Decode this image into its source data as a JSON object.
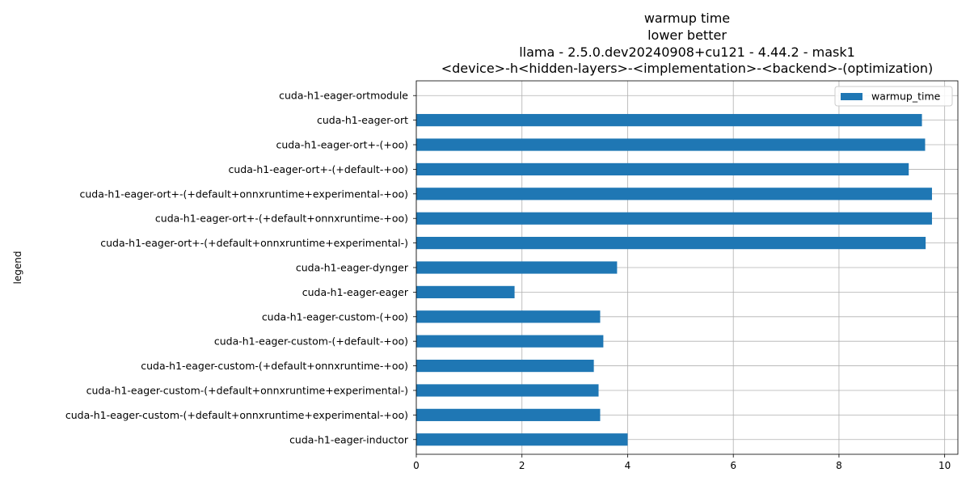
{
  "chart_data": {
    "type": "bar",
    "orientation": "horizontal",
    "title_lines": [
      "warmup time",
      "lower better",
      "llama - 2.5.0.dev20240908+cu121 - 4.44.2 - mask1",
      "<device>-h<hidden-layers>-<implementation>-<backend>-(optimization)"
    ],
    "xlabel": "",
    "ylabel": "legend",
    "xlim": [
      0,
      10.25
    ],
    "xticks": [
      0,
      2,
      4,
      6,
      8,
      10
    ],
    "grid": true,
    "legend": {
      "position": "top-right",
      "entries": [
        "warmup_time"
      ]
    },
    "bar_color": "#1f77b4",
    "categories": [
      "cuda-h1-eager-ortmodule",
      "cuda-h1-eager-ort",
      "cuda-h1-eager-ort+-(+oo)",
      "cuda-h1-eager-ort+-(+default-+oo)",
      "cuda-h1-eager-ort+-(+default+onnxruntime+experimental-+oo)",
      "cuda-h1-eager-ort+-(+default+onnxruntime-+oo)",
      "cuda-h1-eager-ort+-(+default+onnxruntime+experimental-)",
      "cuda-h1-eager-dynger",
      "cuda-h1-eager-eager",
      "cuda-h1-eager-custom-(+oo)",
      "cuda-h1-eager-custom-(+default-+oo)",
      "cuda-h1-eager-custom-(+default+onnxruntime-+oo)",
      "cuda-h1-eager-custom-(+default+onnxruntime+experimental-)",
      "cuda-h1-eager-custom-(+default+onnxruntime+experimental-+oo)",
      "cuda-h1-eager-inductor"
    ],
    "series": [
      {
        "name": "warmup_time",
        "values": [
          0,
          9.57,
          9.63,
          9.32,
          9.76,
          9.76,
          9.64,
          3.8,
          1.86,
          3.48,
          3.54,
          3.36,
          3.45,
          3.48,
          4.0
        ]
      }
    ]
  }
}
